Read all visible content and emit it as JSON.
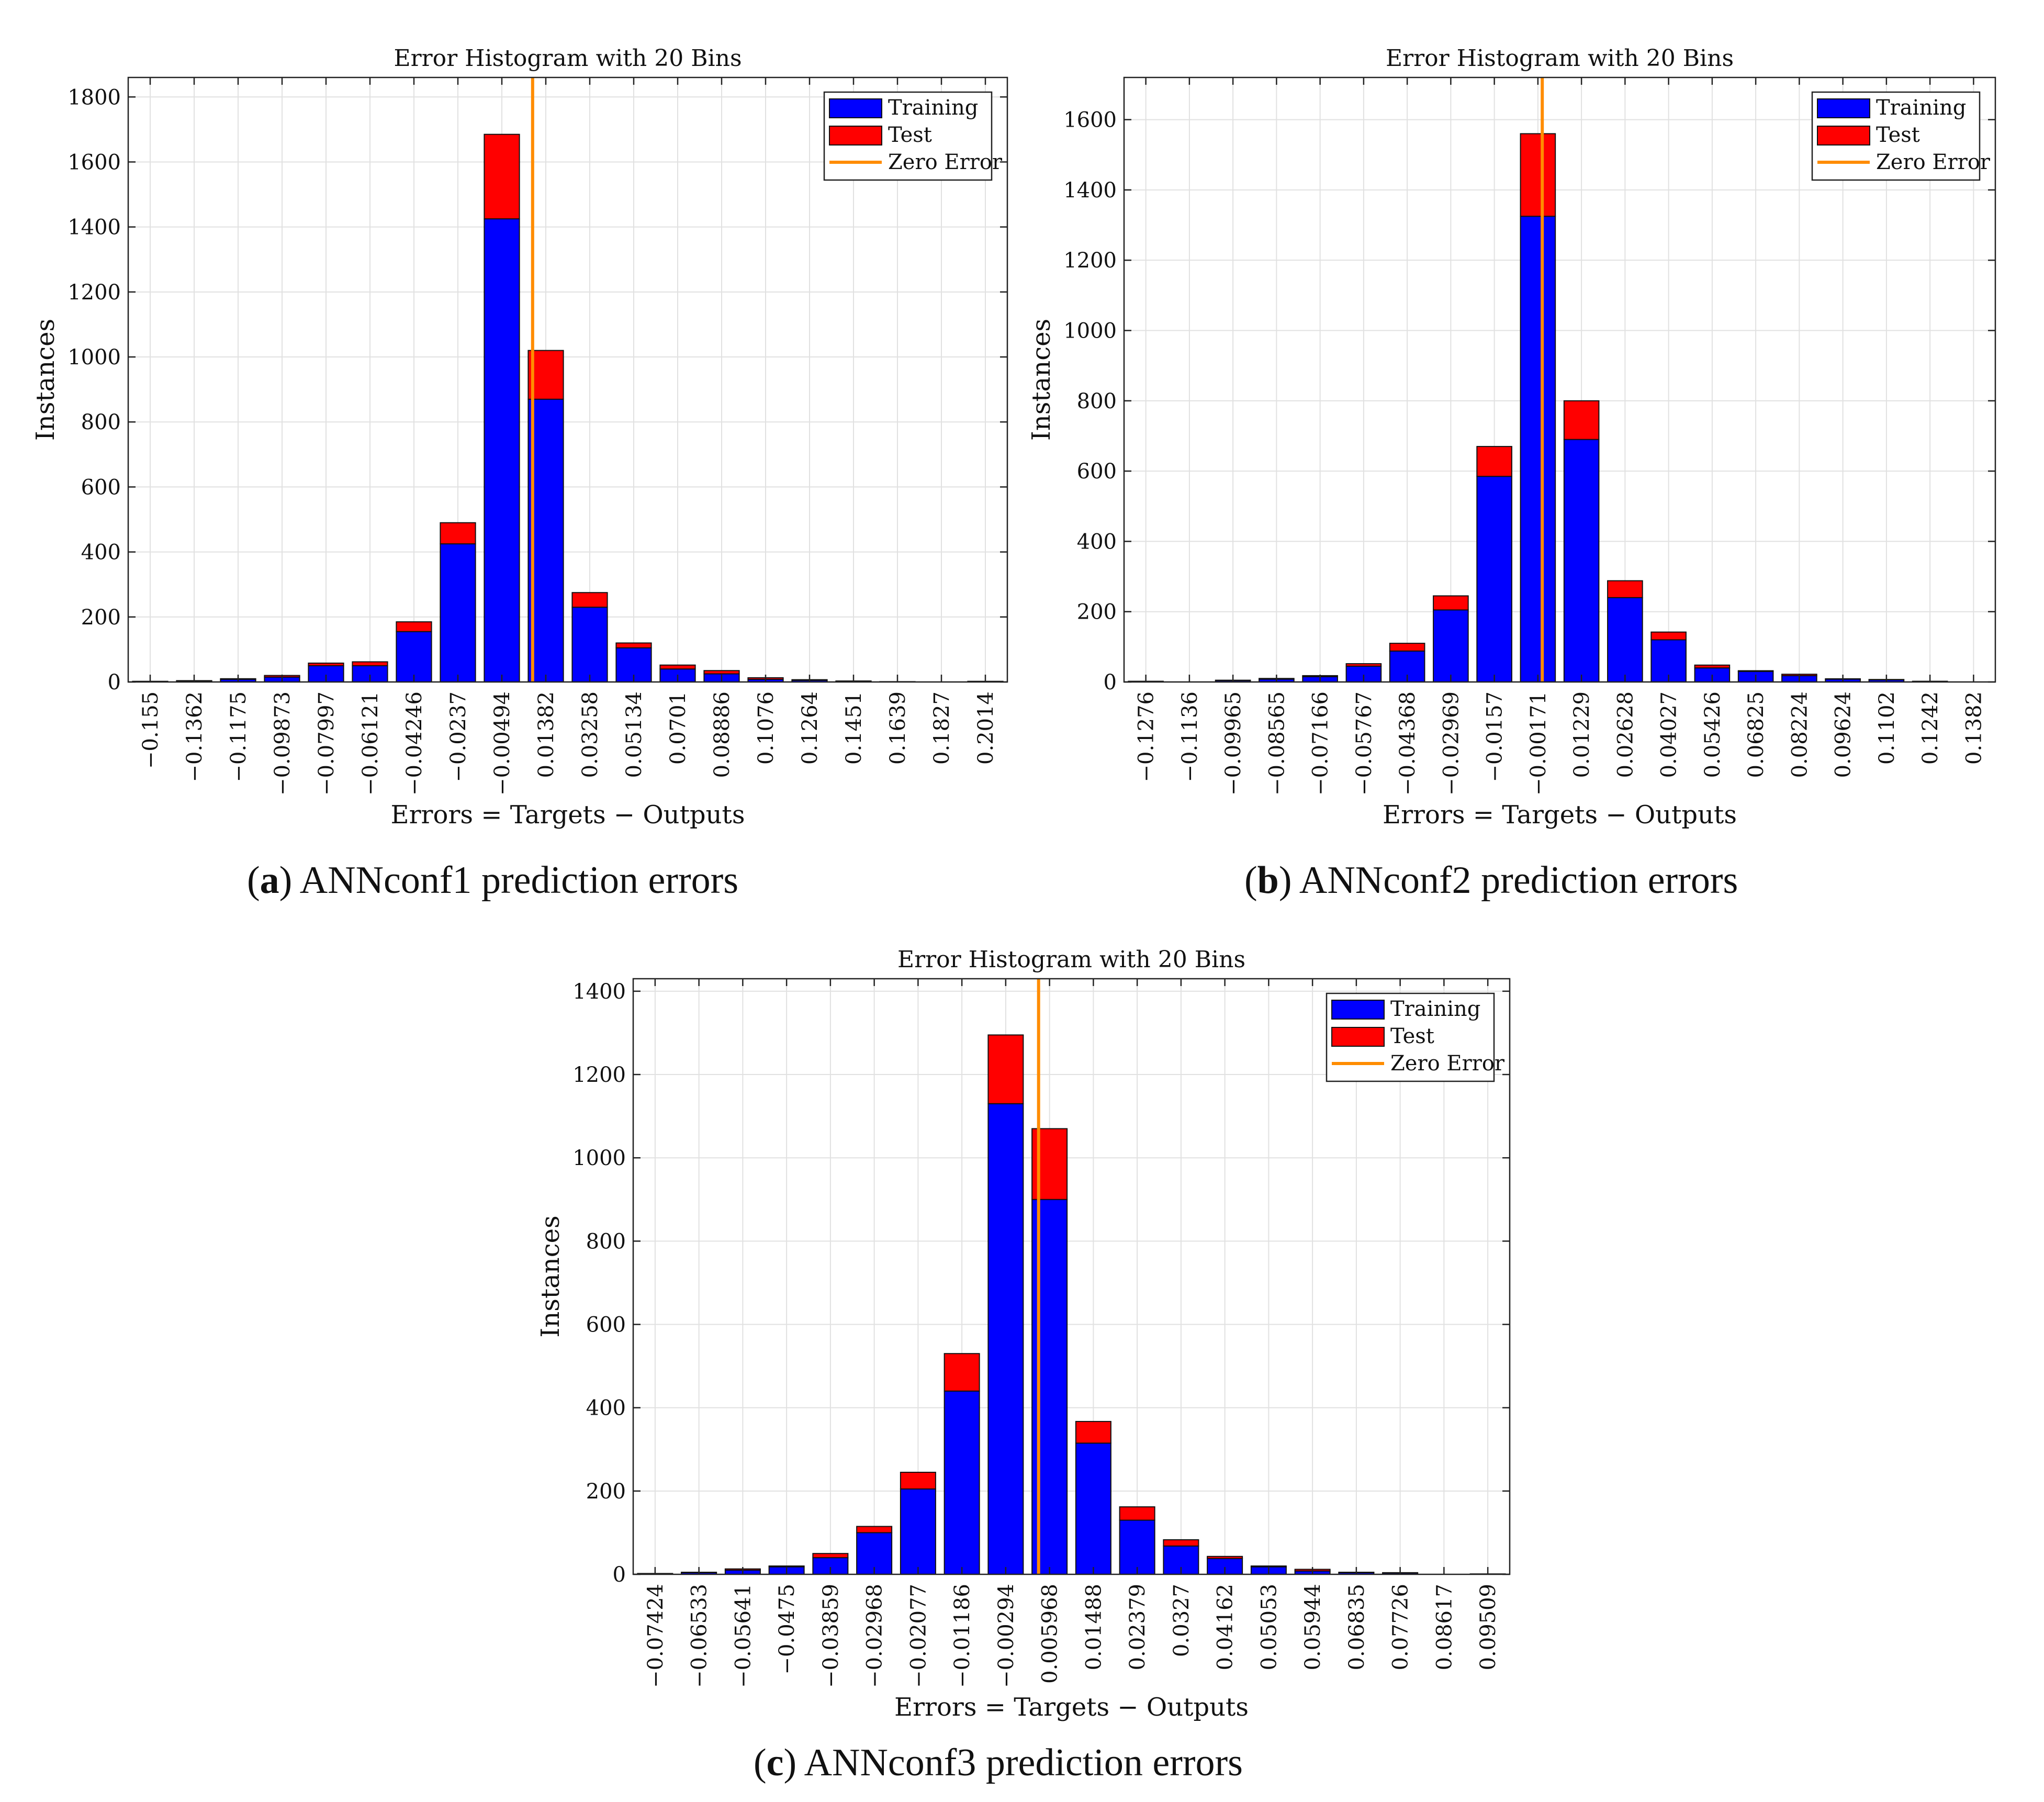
{
  "chart_data": [
    {
      "type": "bar",
      "stacked": true,
      "id": "a",
      "title": "Error Histogram with 20 Bins",
      "xlabel": "Errors = Targets − Outputs",
      "ylabel": "Instances",
      "ylim": [
        0,
        1860
      ],
      "yticks": [
        0,
        200,
        400,
        600,
        800,
        1000,
        1200,
        1400,
        1600,
        1800
      ],
      "categories": [
        "−0.155",
        "−0.1362",
        "−0.1175",
        "−0.09873",
        "−0.07997",
        "−0.06121",
        "−0.04246",
        "−0.0237",
        "−0.00494",
        "0.01382",
        "0.03258",
        "0.05134",
        "0.0701",
        "0.08886",
        "0.1076",
        "0.1264",
        "0.1451",
        "0.1639",
        "0.1827",
        "0.2014"
      ],
      "zero_error_bin": 8.7,
      "series": [
        {
          "name": "Training",
          "color": "#0000ff",
          "values": [
            2,
            3,
            8,
            15,
            50,
            50,
            155,
            425,
            1425,
            870,
            230,
            105,
            40,
            25,
            8,
            5,
            2,
            1,
            0,
            2
          ]
        },
        {
          "name": "Test",
          "color": "#ff0000",
          "values": [
            0,
            1,
            2,
            5,
            8,
            12,
            30,
            65,
            260,
            150,
            45,
            15,
            12,
            10,
            5,
            2,
            1,
            0,
            0,
            0
          ]
        }
      ],
      "zero_line": {
        "name": "Zero Error",
        "color": "#ff8c00"
      },
      "caption_letter": "a",
      "caption_text": ") ANNconf1 prediction errors"
    },
    {
      "type": "bar",
      "stacked": true,
      "id": "b",
      "title": "Error Histogram with 20 Bins",
      "xlabel": "Errors = Targets − Outputs",
      "ylabel": "Instances",
      "ylim": [
        0,
        1720
      ],
      "yticks": [
        0,
        200,
        400,
        600,
        800,
        1000,
        1200,
        1400,
        1600
      ],
      "categories": [
        "−0.1276",
        "−0.1136",
        "−0.09965",
        "−0.08565",
        "−0.07166",
        "−0.05767",
        "−0.04368",
        "−0.02969",
        "−0.0157",
        "−0.00171",
        "0.01229",
        "0.02628",
        "0.04027",
        "0.05426",
        "0.06825",
        "0.08224",
        "0.09624",
        "0.1102",
        "0.1242",
        "0.1382"
      ],
      "zero_error_bin": 9.1,
      "series": [
        {
          "name": "Training",
          "color": "#0000ff",
          "values": [
            2,
            0,
            4,
            8,
            15,
            45,
            88,
            205,
            585,
            1325,
            690,
            240,
            120,
            40,
            30,
            18,
            8,
            6,
            2,
            0
          ]
        },
        {
          "name": "Test",
          "color": "#ff0000",
          "values": [
            0,
            0,
            1,
            2,
            3,
            7,
            22,
            40,
            85,
            235,
            110,
            48,
            22,
            8,
            2,
            4,
            1,
            1,
            0,
            0
          ]
        }
      ],
      "zero_line": {
        "name": "Zero Error",
        "color": "#ff8c00"
      },
      "caption_letter": "b",
      "caption_text": ") ANNconf2 prediction errors"
    },
    {
      "type": "bar",
      "stacked": true,
      "id": "c",
      "title": "Error Histogram with 20 Bins",
      "xlabel": "Errors = Targets − Outputs",
      "ylabel": "Instances",
      "ylim": [
        0,
        1430
      ],
      "yticks": [
        0,
        200,
        400,
        600,
        800,
        1000,
        1200,
        1400
      ],
      "categories": [
        "−0.07424",
        "−0.06533",
        "−0.05641",
        "−0.0475",
        "−0.03859",
        "−0.02968",
        "−0.02077",
        "−0.01186",
        "−0.00294",
        "0.005968",
        "0.01488",
        "0.02379",
        "0.0327",
        "0.04162",
        "0.05053",
        "0.05944",
        "0.06835",
        "0.07726",
        "0.08617",
        "0.09509"
      ],
      "zero_error_bin": 8.75,
      "series": [
        {
          "name": "Training",
          "color": "#0000ff",
          "values": [
            2,
            4,
            10,
            18,
            40,
            100,
            205,
            440,
            1130,
            900,
            315,
            130,
            68,
            38,
            18,
            8,
            4,
            3,
            0,
            0
          ]
        },
        {
          "name": "Test",
          "color": "#ff0000",
          "values": [
            0,
            1,
            3,
            2,
            10,
            15,
            40,
            90,
            165,
            170,
            52,
            32,
            15,
            5,
            2,
            4,
            1,
            1,
            0,
            1
          ]
        }
      ],
      "zero_line": {
        "name": "Zero Error",
        "color": "#ff8c00"
      },
      "caption_letter": "c",
      "caption_text": ") ANNconf3 prediction errors"
    }
  ]
}
